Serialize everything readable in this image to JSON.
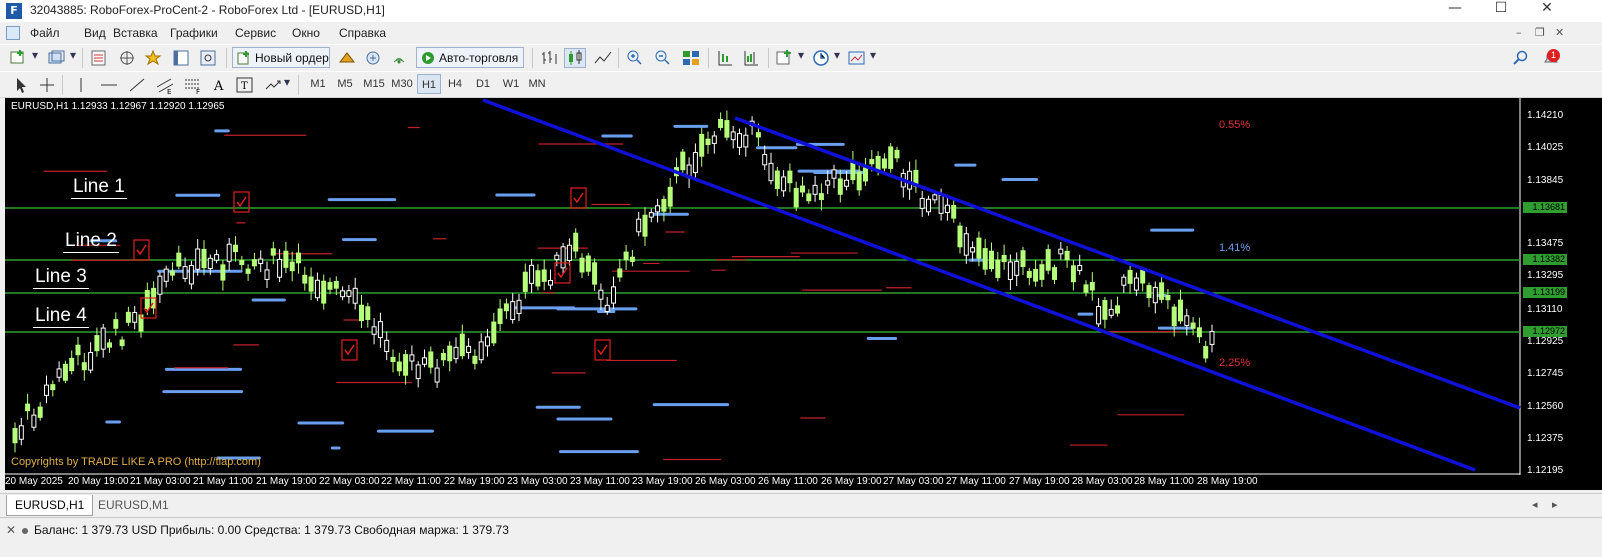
{
  "window": {
    "title": "32043885: RoboForex-ProCent-2 - RoboForex Ltd - [EURUSD,H1]",
    "app_icon_text": "F",
    "minimize_glyph": "—",
    "maximize_glyph": "☐",
    "close_glyph": "✕"
  },
  "menu": {
    "items": [
      "Файл",
      "Вид",
      "Вставка",
      "Графики",
      "Сервис",
      "Окно",
      "Справка"
    ]
  },
  "toolbar": {
    "new_order_label": "Новый ордер",
    "autotrading_label": "Авто-торговля",
    "notifications_count": "1"
  },
  "timeframes": [
    "M1",
    "M5",
    "M15",
    "M30",
    "H1",
    "H4",
    "D1",
    "W1",
    "MN"
  ],
  "active_timeframe": "H1",
  "chart": {
    "header": "EURUSD,H1  1.12933 1.12967 1.12920 1.12965",
    "copyright": "Copyrights by TRADE LIKE A PRO (http://tlap.com)",
    "line_labels": [
      "Line 1",
      "Line 2",
      "Line 3",
      "Line 4"
    ],
    "percent_labels": [
      {
        "text": "0.55%",
        "color": "#e0303a"
      },
      {
        "text": "1.41%",
        "color": "#6a9ff0"
      },
      {
        "text": "2.25%",
        "color": "#e0303a"
      }
    ],
    "price_ticks": [
      "1.14210",
      "1.14025",
      "1.13845",
      "1.13475",
      "1.13295",
      "1.13110",
      "1.12925",
      "1.12745",
      "1.12560",
      "1.12375",
      "1.12195"
    ],
    "price_tags": [
      {
        "text": "1.13681",
        "color": "#2fa02f"
      },
      {
        "text": "1.13382",
        "color": "#2fa02f"
      },
      {
        "text": "1.13199",
        "color": "#2fa02f"
      },
      {
        "text": "1.12972",
        "color": "#2fa02f"
      }
    ],
    "time_labels": [
      "20 May 2025",
      "20 May 19:00",
      "21 May 03:00",
      "21 May 11:00",
      "21 May 19:00",
      "22 May 03:00",
      "22 May 11:00",
      "22 May 19:00",
      "23 May 03:00",
      "23 May 11:00",
      "23 May 19:00",
      "26 May 03:00",
      "26 May 11:00",
      "26 May 19:00",
      "27 May 03:00",
      "27 May 11:00",
      "27 May 19:00",
      "28 May 03:00",
      "28 May 11:00",
      "28 May 19:00"
    ],
    "colors": {
      "background": "#000000",
      "bull_candle": "#b6ff7a",
      "bear_candle": "#ffffff",
      "channel": "#1010d8",
      "level_line": "#2f9d2f",
      "support_blue": "#6a9ff0",
      "resistance_red": "#c0202a"
    }
  },
  "tabs": [
    "EURUSD,H1",
    "EURUSD,M1"
  ],
  "active_tab": "EURUSD,H1",
  "status": {
    "text": "Баланс: 1 379.73 USD  Прибыль: 0.00  Средства: 1 379.73  Свободная маржа: 1 379.73"
  }
}
